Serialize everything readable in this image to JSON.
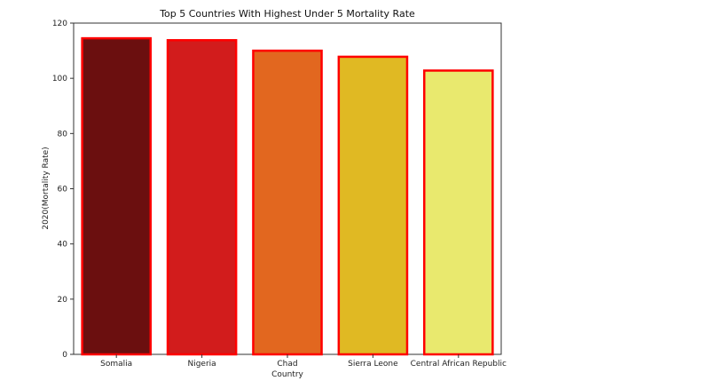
{
  "chart_data": {
    "type": "bar",
    "title": "Top 5 Countries With Highest Under 5 Mortality Rate",
    "xlabel": "Country",
    "ylabel": "2020(Mortality Rate)",
    "categories": [
      "Somalia",
      "Nigeria",
      "Chad",
      "Sierra Leone",
      "Central African Republic"
    ],
    "values": [
      114.5,
      113.8,
      110.0,
      107.8,
      102.8
    ],
    "ylim": [
      0,
      120
    ],
    "yticks": [
      "0",
      "20",
      "40",
      "60",
      "80",
      "100",
      "120"
    ],
    "grid": false,
    "legend": "none",
    "colors": {
      "fills": [
        "#6b0f0f",
        "#d21c1c",
        "#e2671f",
        "#e0b923",
        "#e9e96e"
      ],
      "edge": "#ff0000",
      "axis": "#333333"
    }
  }
}
